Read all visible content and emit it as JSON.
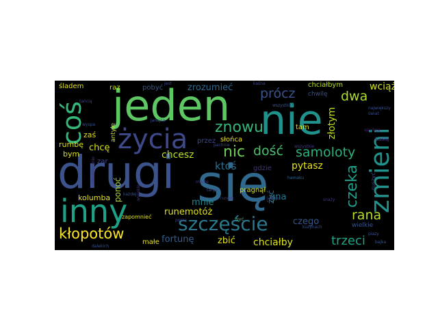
{
  "background_color": "#000000",
  "page_background": "#ffffff",
  "colormap": "viridis",
  "words": [
    {
      "text": "jeden",
      "color": "#5dc863"
    },
    {
      "text": "drugi",
      "color": "#3b528b"
    },
    {
      "text": "się",
      "color": "#31688e"
    },
    {
      "text": "nie",
      "color": "#21918c"
    },
    {
      "text": "inny",
      "color": "#1fa187"
    },
    {
      "text": "życia",
      "color": "#3e4989"
    },
    {
      "text": "coś",
      "color": "#35b779"
    },
    {
      "text": "zmieni",
      "color": "#21918c"
    },
    {
      "text": "szczęście",
      "color": "#2a788e"
    },
    {
      "text": "znowu",
      "color": "#35b779"
    },
    {
      "text": "kłopotów",
      "color": "#fde725"
    },
    {
      "text": "nic",
      "color": "#6ece58"
    },
    {
      "text": "samoloty",
      "color": "#2db27d"
    },
    {
      "text": "dość",
      "color": "#4ac16d"
    },
    {
      "text": "dwa",
      "color": "#addc30"
    },
    {
      "text": "rana",
      "color": "#b5de2b"
    },
    {
      "text": "czeka",
      "color": "#1f9e89"
    },
    {
      "text": "trzeci",
      "color": "#20a386"
    },
    {
      "text": "zrozumieć",
      "color": "#31688e"
    },
    {
      "text": "prócz",
      "color": "#3b528b"
    },
    {
      "text": "złotym",
      "color": "#c2df23"
    },
    {
      "text": "wciąż",
      "color": "#d0e11c"
    },
    {
      "text": "pytasz",
      "color": "#e5e419"
    },
    {
      "text": "chcesz",
      "color": "#b8de29"
    },
    {
      "text": "ktoś",
      "color": "#2e6e8e"
    },
    {
      "text": "runemotóż",
      "color": "#e2e418"
    },
    {
      "text": "fortunę",
      "color": "#355f8d"
    },
    {
      "text": "chciałby",
      "color": "#dde318"
    },
    {
      "text": "czego",
      "color": "#39568c"
    },
    {
      "text": "mnie",
      "color": "#24878e"
    },
    {
      "text": "zbić",
      "color": "#e5e419"
    },
    {
      "text": "chcę",
      "color": "#dae319"
    },
    {
      "text": "gna",
      "color": "#2a788e"
    },
    {
      "text": "żyć",
      "color": "#2f6b8e"
    },
    {
      "text": "ponoć",
      "color": "#a8db34"
    },
    {
      "text": "kolumba",
      "color": "#e7e419"
    },
    {
      "text": "rumbę",
      "color": "#d8e219"
    },
    {
      "text": "zaś",
      "color": "#e5e419"
    },
    {
      "text": "bym",
      "color": "#e2e418"
    },
    {
      "text": "śladem",
      "color": "#e2e418"
    },
    {
      "text": "raz",
      "color": "#cde11d"
    },
    {
      "text": "pobyć",
      "color": "#38598c"
    },
    {
      "text": "przez",
      "color": "#3e4a89"
    },
    {
      "text": "słońca",
      "color": "#f1e51d"
    },
    {
      "text": "tam",
      "color": "#e7e419"
    },
    {
      "text": "gdzie",
      "color": "#46327e"
    },
    {
      "text": "pragnął",
      "color": "#d5e21a"
    },
    {
      "text": "chciałbym",
      "color": "#bade28"
    },
    {
      "text": "antyle",
      "color": "#c5e021"
    },
    {
      "text": "zar",
      "color": "#3e4989"
    },
    {
      "text": "małe",
      "color": "#e7e419"
    },
    {
      "text": "zapomnieć",
      "color": "#e3e418"
    },
    {
      "text": "wielkie",
      "color": "#39568c"
    },
    {
      "text": "ruszyć",
      "color": "#3e4989"
    },
    {
      "text": "kasię",
      "color": "#443983"
    },
    {
      "text": "chwilę",
      "color": "#3b528b"
    },
    {
      "text": "największy",
      "color": "#3b528b"
    },
    {
      "text": "świat",
      "color": "#3e4989"
    },
    {
      "text": "spadają",
      "color": "#482475"
    },
    {
      "text": "kuzynach",
      "color": "#3b528b"
    },
    {
      "text": "piazy",
      "color": "#3b528b"
    },
    {
      "text": "bajka",
      "color": "#38598c"
    },
    {
      "text": "targa",
      "color": "#3e4989"
    },
    {
      "text": "morze",
      "color": "#423f85"
    },
    {
      "text": "hamaku",
      "color": "#31688e"
    },
    {
      "text": "porze",
      "color": "#414487"
    },
    {
      "text": "wysokie",
      "color": "#453781"
    },
    {
      "text": "dalekich",
      "color": "#3b528b"
    },
    {
      "text": "wyspa",
      "color": "#3b528b"
    },
    {
      "text": "kaśna",
      "color": "#3e4989"
    },
    {
      "text": "jest",
      "color": "#3e4989"
    },
    {
      "text": "tańcią",
      "color": "#414487"
    },
    {
      "text": "romantycznie",
      "color": "#472d7b"
    },
    {
      "text": "wszystkich",
      "color": "#3b528b"
    },
    {
      "text": "janajsa",
      "color": "#3b528b"
    },
    {
      "text": "janajsi",
      "color": "#3b528b"
    },
    {
      "text": "każdej",
      "color": "#3b528b"
    },
    {
      "text": "być",
      "color": "#35b779"
    },
    {
      "text": "runem",
      "color": "#433e85"
    },
    {
      "text": "snaży",
      "color": "#443983"
    },
    {
      "text": "pachnie",
      "color": "#3e4989"
    },
    {
      "text": "wszystkie",
      "color": "#433e85"
    }
  ]
}
